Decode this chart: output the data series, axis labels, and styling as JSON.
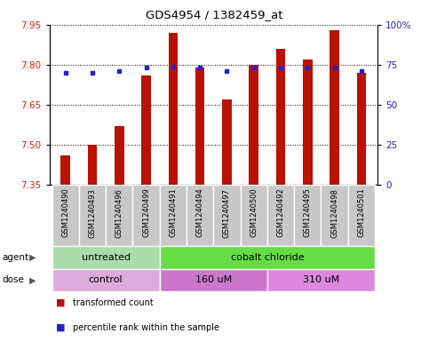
{
  "title": "GDS4954 / 1382459_at",
  "samples": [
    "GSM1240490",
    "GSM1240493",
    "GSM1240496",
    "GSM1240499",
    "GSM1240491",
    "GSM1240494",
    "GSM1240497",
    "GSM1240500",
    "GSM1240492",
    "GSM1240495",
    "GSM1240498",
    "GSM1240501"
  ],
  "bar_values": [
    7.46,
    7.5,
    7.57,
    7.76,
    7.92,
    7.79,
    7.67,
    7.8,
    7.86,
    7.82,
    7.93,
    7.77
  ],
  "dot_values": [
    70,
    70,
    71,
    73,
    74,
    73,
    71,
    73,
    73,
    73,
    73,
    71
  ],
  "y_min": 7.35,
  "y_max": 7.95,
  "y_ticks": [
    7.35,
    7.5,
    7.65,
    7.8,
    7.95
  ],
  "y2_ticks": [
    0,
    25,
    50,
    75,
    100
  ],
  "y2_labels": [
    "0",
    "25",
    "50",
    "75",
    "100%"
  ],
  "bar_color": "#bb1100",
  "dot_color": "#2222cc",
  "plot_bg": "#ffffff",
  "agent_labels": [
    "untreated",
    "cobalt chloride"
  ],
  "agent_ranges": [
    [
      0,
      3
    ],
    [
      4,
      11
    ]
  ],
  "agent_colors": [
    "#aaddaa",
    "#66dd44"
  ],
  "dose_labels": [
    "control",
    "160 uM",
    "310 uM"
  ],
  "dose_ranges": [
    [
      0,
      3
    ],
    [
      4,
      7
    ],
    [
      8,
      11
    ]
  ],
  "dose_colors": [
    "#ddaadd",
    "#cc77cc",
    "#dd88dd"
  ],
  "legend_labels": [
    "transformed count",
    "percentile rank within the sample"
  ],
  "legend_colors": [
    "#bb1100",
    "#2222cc"
  ],
  "sample_box_color": "#c8c8c8",
  "grid_color": "#000000",
  "left_label_color": "#cc2200",
  "right_label_color": "#2222cc"
}
